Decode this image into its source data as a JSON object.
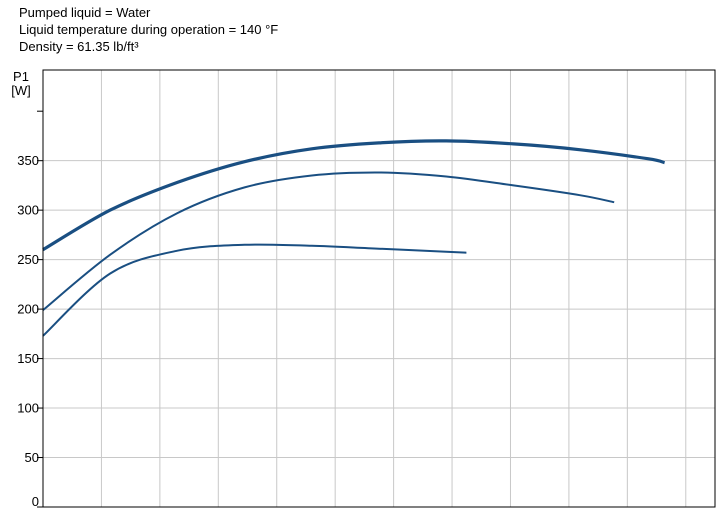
{
  "notes": [
    "Pumped liquid = Water",
    "Liquid temperature during operation = 140 °F",
    "Density = 61.35 lb/ft³"
  ],
  "chart_data": {
    "type": "line",
    "title": "",
    "ylabel_line1": "P1",
    "ylabel_line2": "[W]",
    "xlabel": "",
    "ylim": [
      0,
      400
    ],
    "xlim": [
      0,
      1
    ],
    "yticks": [
      0,
      50,
      100,
      150,
      200,
      250,
      300,
      350
    ],
    "ytick_labels": [
      "0",
      "50",
      "100",
      "150",
      "200",
      "250",
      "300",
      "350"
    ],
    "grid": true,
    "legend": "none",
    "line_color": "#1a4f82",
    "series": [
      {
        "x": [
          0,
          0.1,
          0.2,
          0.3,
          0.4,
          0.5,
          0.6,
          0.7,
          0.8,
          0.9,
          0.925
        ],
        "y": [
          260,
          300,
          328,
          349,
          362,
          368,
          370,
          367,
          361,
          352,
          348
        ]
      },
      {
        "x": [
          0,
          0.1,
          0.2,
          0.3,
          0.4,
          0.5,
          0.6,
          0.7,
          0.8,
          0.85
        ],
        "y": [
          199,
          255,
          297,
          323,
          335,
          338,
          334,
          325,
          315,
          308
        ]
      },
      {
        "x": [
          0,
          0.1,
          0.2,
          0.3,
          0.4,
          0.5,
          0.6,
          0.63
        ],
        "y": [
          173,
          236,
          259,
          265,
          264,
          261,
          258,
          257
        ]
      }
    ]
  }
}
